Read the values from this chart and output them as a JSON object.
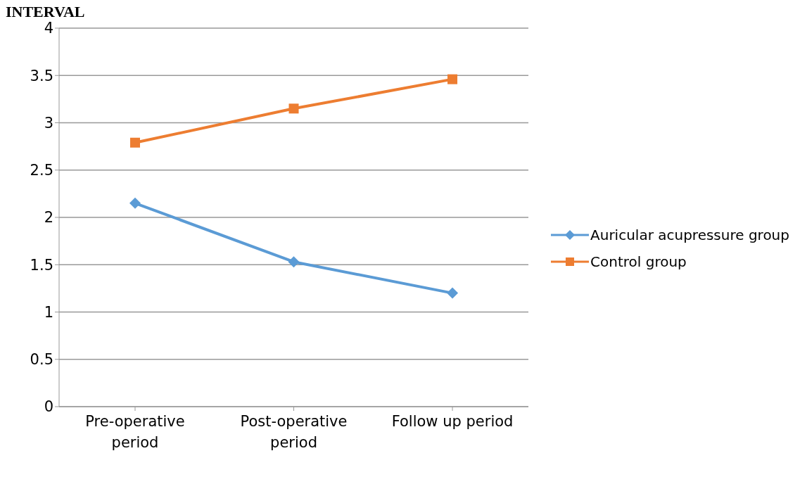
{
  "chart_data": {
    "type": "line",
    "title": "INTERVAL",
    "categories": [
      "Pre-operative period",
      "Post-operative period",
      "Follow up period"
    ],
    "series": [
      {
        "name": "Auricular acupressure group",
        "color": "#5b9bd5",
        "values": [
          2.15,
          1.53,
          1.2
        ],
        "marker": "diamond"
      },
      {
        "name": "Control group",
        "color": "#ed7d31",
        "values": [
          2.79,
          3.15,
          3.46
        ],
        "marker": "square"
      }
    ],
    "ylim": [
      0,
      4
    ],
    "yticks": [
      0,
      0.5,
      1,
      1.5,
      2,
      2.5,
      3,
      3.5,
      4
    ],
    "grid": "y",
    "legend": "right"
  }
}
